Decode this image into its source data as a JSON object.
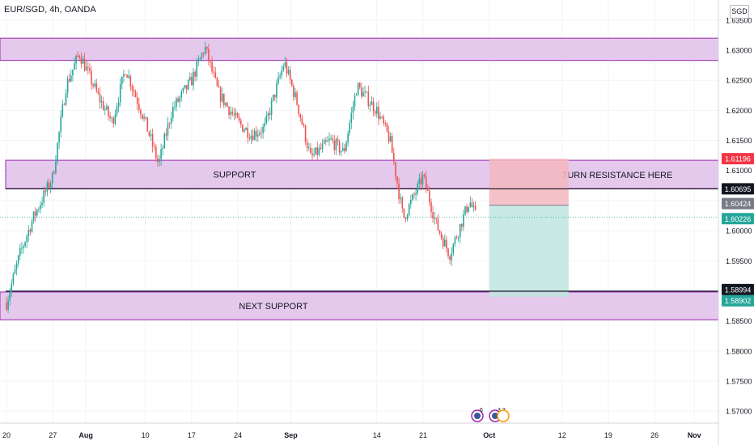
{
  "symbol_title": "EUR/SGD, 4h, OANDA",
  "currency_label": "SGD",
  "colors": {
    "zone_fill": "#e4c9ec",
    "zone_border": "#9c27b0",
    "candle_up": "#26a69a",
    "candle_down": "#ef5350",
    "risk_fill": "#f5b7bf",
    "reward_fill": "#bfe6df",
    "grid": "#f0f3fa",
    "axis_text": "#131722",
    "last_price_badge": "#26a69a",
    "stop_badge": "#f23645",
    "line_badge": "#131722"
  },
  "chart_data": {
    "type": "candlestick",
    "instrument": "EUR/SGD",
    "timeframe": "4h",
    "source": "OANDA",
    "ylim": [
      1.568,
      1.637
    ],
    "y_ticks": [
      "1.63500",
      "1.63000",
      "1.62500",
      "1.62000",
      "1.61500",
      "1.61000",
      "1.60500",
      "1.60000",
      "1.59500",
      "1.59000",
      "1.58500",
      "1.58000",
      "1.57500",
      "1.57000"
    ],
    "x_ticks": [
      "20",
      "27",
      "Aug",
      "10",
      "17",
      "24",
      "Sep",
      "14",
      "21",
      "Oct",
      "12",
      "19",
      "26",
      "Nov"
    ],
    "price_path": [
      {
        "date": "Jul 20",
        "price": 1.588
      },
      {
        "date": "Jul 22",
        "price": 1.596
      },
      {
        "date": "Jul 24",
        "price": 1.602
      },
      {
        "date": "Jul 27",
        "price": 1.609
      },
      {
        "date": "Jul 29",
        "price": 1.624
      },
      {
        "date": "Jul 31",
        "price": 1.6295
      },
      {
        "date": "Aug 3",
        "price": 1.622
      },
      {
        "date": "Aug 5",
        "price": 1.618
      },
      {
        "date": "Aug 7",
        "price": 1.627
      },
      {
        "date": "Aug 10",
        "price": 1.618
      },
      {
        "date": "Aug 12",
        "price": 1.611
      },
      {
        "date": "Aug 14",
        "price": 1.62
      },
      {
        "date": "Aug 17",
        "price": 1.625
      },
      {
        "date": "Aug 19",
        "price": 1.6305
      },
      {
        "date": "Aug 21",
        "price": 1.623
      },
      {
        "date": "Aug 24",
        "price": 1.618
      },
      {
        "date": "Aug 26",
        "price": 1.616
      },
      {
        "date": "Aug 28",
        "price": 1.617
      },
      {
        "date": "Aug 31",
        "price": 1.628
      },
      {
        "date": "Sep 2",
        "price": 1.621
      },
      {
        "date": "Sep 4",
        "price": 1.612
      },
      {
        "date": "Sep 7",
        "price": 1.615
      },
      {
        "date": "Sep 9",
        "price": 1.613
      },
      {
        "date": "Sep 11",
        "price": 1.624
      },
      {
        "date": "Sep 14",
        "price": 1.62
      },
      {
        "date": "Sep 16",
        "price": 1.615
      },
      {
        "date": "Sep 18",
        "price": 1.602
      },
      {
        "date": "Sep 21",
        "price": 1.609
      },
      {
        "date": "Sep 23",
        "price": 1.601
      },
      {
        "date": "Sep 25",
        "price": 1.596
      },
      {
        "date": "Sep 28",
        "price": 1.605
      },
      {
        "date": "Sep 29",
        "price": 1.6022
      }
    ],
    "zones": [
      {
        "label": "",
        "top": 1.632,
        "bottom": 1.6283,
        "from": "start",
        "to": "end"
      },
      {
        "label": "SUPPORT",
        "top": 1.6117,
        "bottom": 1.607,
        "from": "Jul 20",
        "to": "end"
      },
      {
        "label": "TURN RESISTANCE HERE",
        "top": null,
        "bottom": null,
        "from": "",
        "to": ""
      },
      {
        "label": "NEXT SUPPORT",
        "top": 1.5898,
        "bottom": 1.5852,
        "from": "start",
        "to": "end"
      }
    ],
    "position": {
      "side": "short",
      "entry": 1.60424,
      "stop": 1.61196,
      "target": 1.58902,
      "from": "Oct 1",
      "to": "Oct 13"
    },
    "horizontal_lines": [
      {
        "price": 1.60695,
        "color": "#131722"
      },
      {
        "price": 1.58994,
        "color": "#131722"
      }
    ],
    "price_labels": [
      {
        "text": "1.61196",
        "price": 1.61196,
        "kind": "stop"
      },
      {
        "text": "1.60695",
        "price": 1.60695,
        "kind": "line"
      },
      {
        "text": "1.60424",
        "price": 1.60424,
        "kind": "entry"
      },
      {
        "text": "1.60226",
        "price": 1.60226,
        "kind": "last"
      },
      {
        "text": "1.58994",
        "price": 1.58994,
        "kind": "line"
      },
      {
        "text": "1.58902",
        "price": 1.58902,
        "kind": "target"
      }
    ],
    "last_price": 1.60226,
    "events": [
      {
        "date": "Sep 30",
        "count": "6"
      },
      {
        "date": "Oct 1",
        "count": "3 3"
      }
    ]
  }
}
